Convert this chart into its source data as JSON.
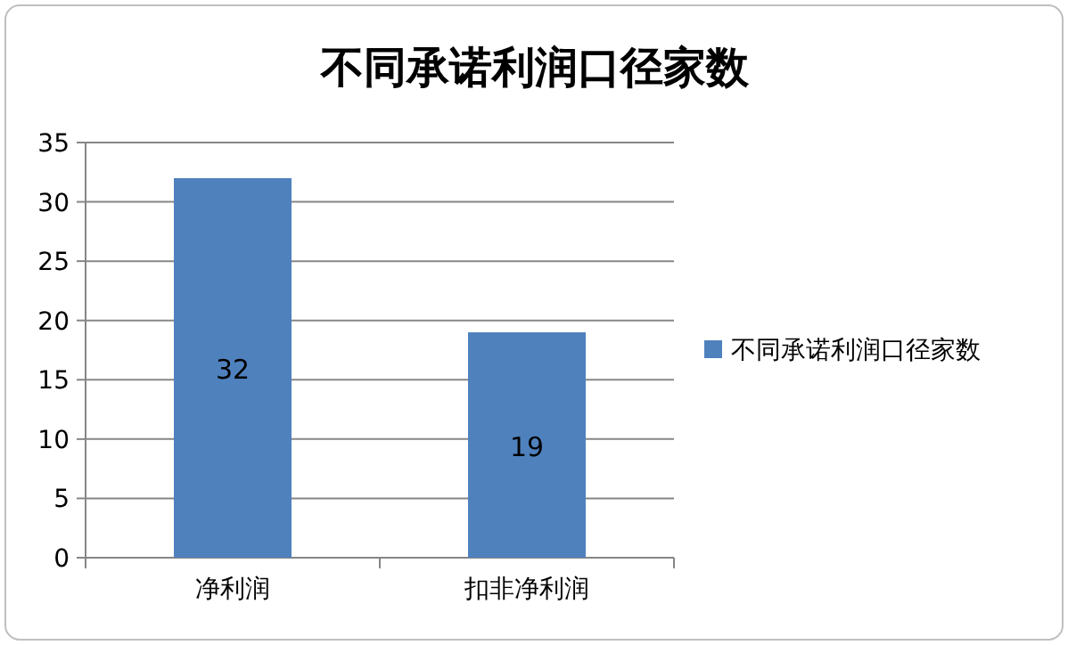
{
  "chart_data": {
    "type": "bar",
    "title": "不同承诺利润口径家数",
    "categories": [
      "净利润",
      "扣非净利润"
    ],
    "series": [
      {
        "name": "不同承诺利润口径家数",
        "color": "#4f81bd",
        "values": [
          32,
          19
        ]
      }
    ],
    "ylim": [
      0,
      35
    ],
    "yticks": [
      0,
      5,
      10,
      15,
      20,
      25,
      30,
      35
    ],
    "grid": "y",
    "legend": "right",
    "data_labels": true
  }
}
